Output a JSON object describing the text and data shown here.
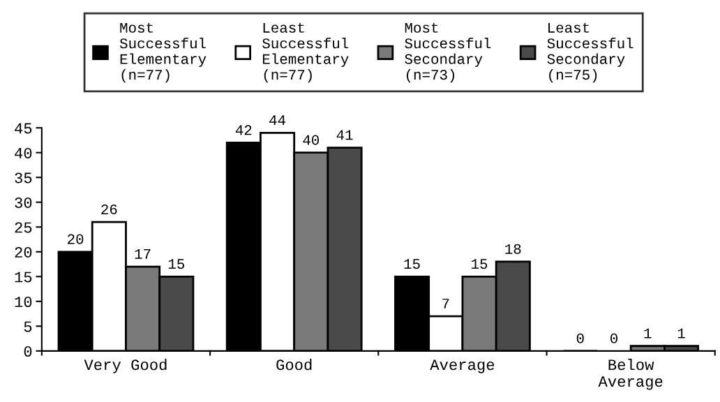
{
  "chart_data": {
    "type": "bar",
    "categories": [
      "Very Good",
      "Good",
      "Average",
      "Below\nAverage"
    ],
    "series": [
      {
        "name": "Most\nSuccessful\nElementary\n(n=77)",
        "color": "#000000",
        "values": [
          20,
          42,
          15,
          0
        ]
      },
      {
        "name": "Least\nSuccessful\nElementary\n(n=77)",
        "color": "#ffffff",
        "values": [
          26,
          44,
          7,
          0
        ]
      },
      {
        "name": "Most\nSuccessful\nSecondary\n(n=73)",
        "color": "#7a7a7a",
        "values": [
          17,
          40,
          15,
          1
        ]
      },
      {
        "name": "Least\nSuccessful\nSecondary\n(n=75)",
        "color": "#4a4a4a",
        "values": [
          15,
          41,
          18,
          1
        ]
      }
    ],
    "ylim": [
      0,
      45
    ],
    "yticks": [
      0,
      5,
      10,
      15,
      20,
      25,
      30,
      35,
      40,
      45
    ],
    "data_labels": true,
    "grid": false,
    "legend": "top"
  }
}
